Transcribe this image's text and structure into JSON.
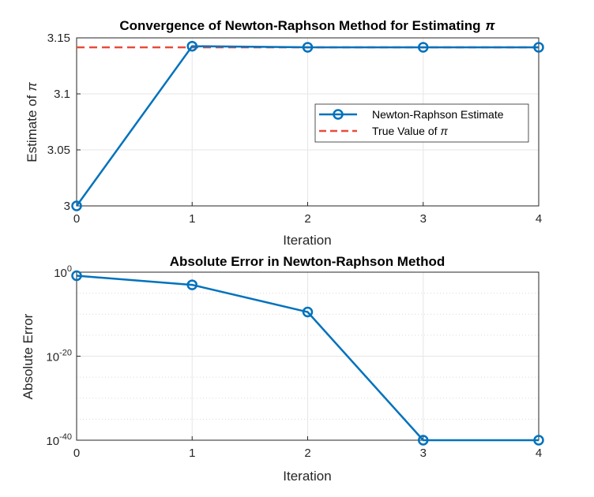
{
  "chart_data": [
    {
      "type": "line",
      "title": "Convergence of Newton-Raphson Method for Estimating",
      "title_symbol": "π",
      "xlabel": "Iteration",
      "ylabel": "Estimate of",
      "ylabel_symbol": "π",
      "xlim": [
        0,
        4
      ],
      "ylim": [
        3,
        3.15
      ],
      "xticks": [
        "0",
        "1",
        "2",
        "3",
        "4"
      ],
      "yticks": [
        "3",
        "3.05",
        "3.1",
        "3.15"
      ],
      "grid": true,
      "legend_position": "right-center",
      "series": [
        {
          "name": "Newton-Raphson Estimate",
          "x": [
            0,
            1,
            2,
            3,
            4
          ],
          "values": [
            3.0,
            3.14255,
            3.14159,
            3.14159,
            3.14159
          ],
          "color": "#0072BD",
          "style": "solid-circle-markers"
        },
        {
          "name": "True Value of",
          "name_symbol": "π",
          "x": [
            0,
            4
          ],
          "values": [
            3.14159,
            3.14159
          ],
          "color": "#E74C3C",
          "style": "dashed"
        }
      ]
    },
    {
      "type": "line",
      "title": "Absolute Error in Newton-Raphson Method",
      "xlabel": "Iteration",
      "ylabel": "Absolute Error",
      "xlim": [
        0,
        4
      ],
      "ylim": [
        1e-40,
        1
      ],
      "yscale": "log",
      "xticks": [
        "0",
        "1",
        "2",
        "3",
        "4"
      ],
      "yticks": [
        {
          "base": "10",
          "exp": "0"
        },
        {
          "base": "10",
          "exp": "-20"
        },
        {
          "base": "10",
          "exp": "-40"
        }
      ],
      "grid": true,
      "series": [
        {
          "x": [
            0,
            1,
            2,
            3,
            4
          ],
          "values": [
            0.1416,
            0.00096,
            3.3e-10,
            1e-40,
            1e-40
          ],
          "color": "#0072BD",
          "style": "solid-circle-markers"
        }
      ]
    }
  ]
}
